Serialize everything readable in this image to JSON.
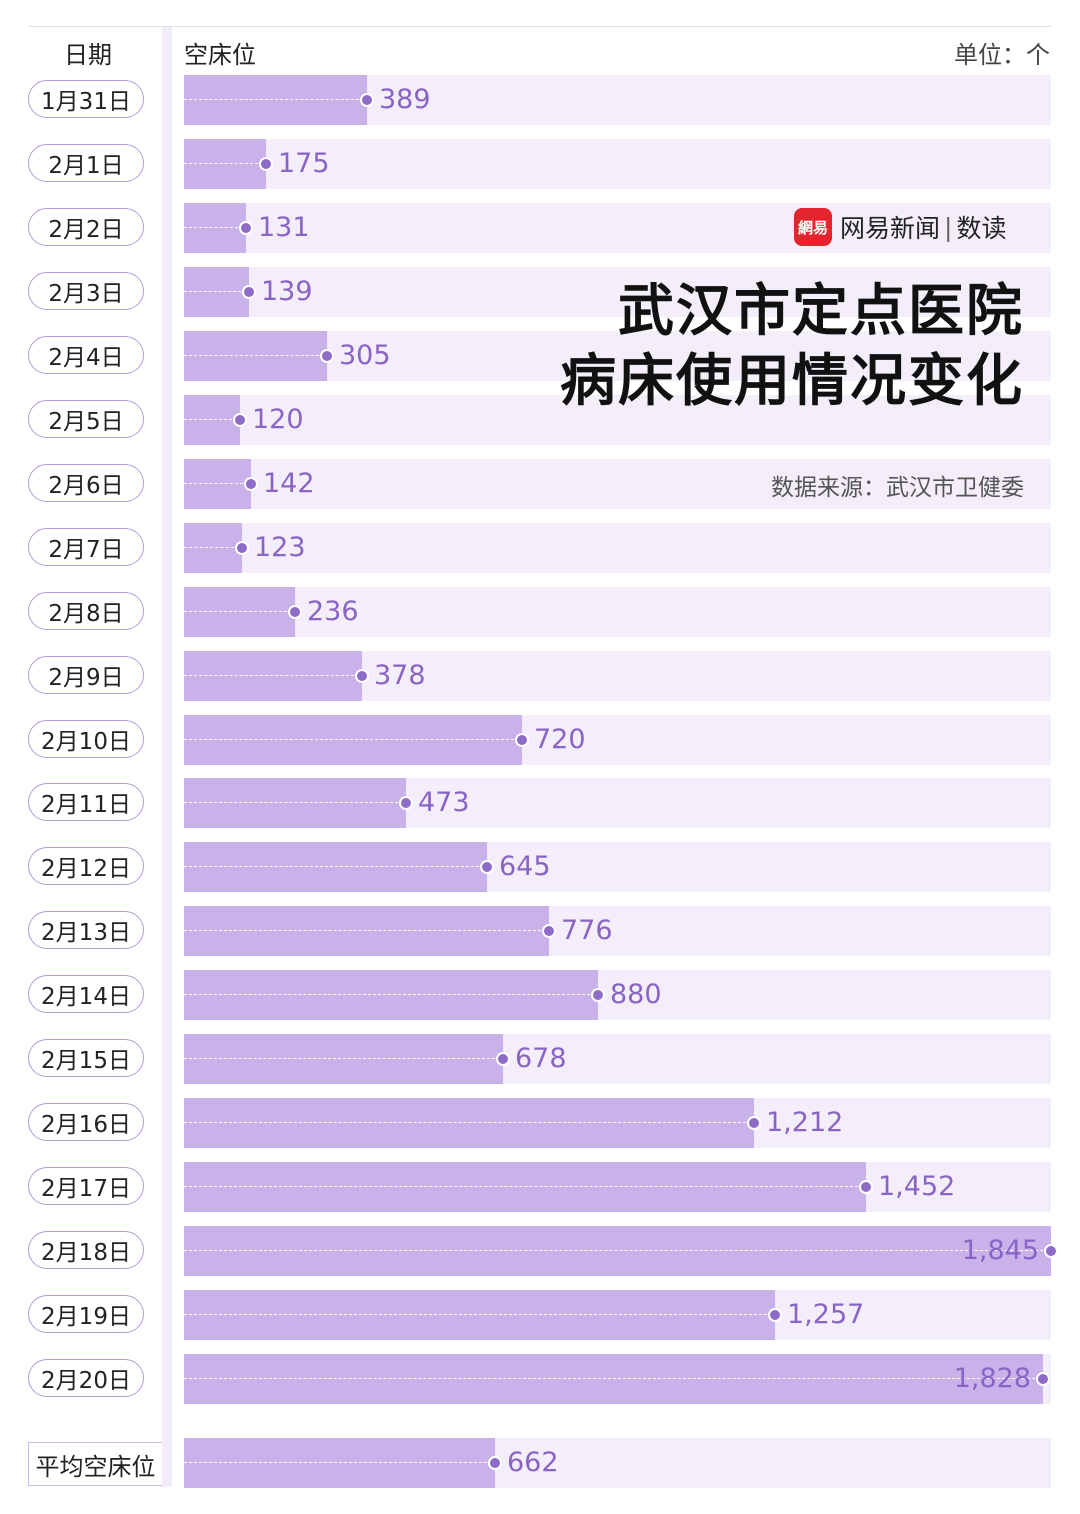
{
  "header": {
    "date_label": "日期",
    "column_label": "空床位",
    "unit_label": "单位：个"
  },
  "brand": {
    "logo_text": "網易",
    "name": "网易新闻",
    "separator": "|",
    "sub": "数读"
  },
  "title": {
    "line1": "武汉市定点医院",
    "line2": "病床使用情况变化"
  },
  "source": "数据来源：武汉市卫健委",
  "chart_data": {
    "type": "bar",
    "orientation": "horizontal",
    "categories": [
      "1月31日",
      "2月1日",
      "2月2日",
      "2月3日",
      "2月4日",
      "2月5日",
      "2月6日",
      "2月7日",
      "2月8日",
      "2月9日",
      "2月10日",
      "2月11日",
      "2月12日",
      "2月13日",
      "2月14日",
      "2月15日",
      "2月16日",
      "2月17日",
      "2月18日",
      "2月19日",
      "2月20日"
    ],
    "values": [
      389,
      175,
      131,
      139,
      305,
      120,
      142,
      123,
      236,
      378,
      720,
      473,
      645,
      776,
      880,
      678,
      1212,
      1452,
      1845,
      1257,
      1828
    ],
    "value_labels": [
      "389",
      "175",
      "131",
      "139",
      "305",
      "120",
      "142",
      "123",
      "236",
      "378",
      "720",
      "473",
      "645",
      "776",
      "880",
      "678",
      "1,212",
      "1,452",
      "1,845",
      "1,257",
      "1,828"
    ],
    "average": {
      "label": "平均空床位",
      "value": 662,
      "value_label": "662"
    },
    "xlim": [
      0,
      1845
    ],
    "colors": {
      "bar": "#c9b2e9",
      "track": "#f3eef9",
      "dot": "#8f6bc8",
      "label": "#8a64c4"
    }
  }
}
